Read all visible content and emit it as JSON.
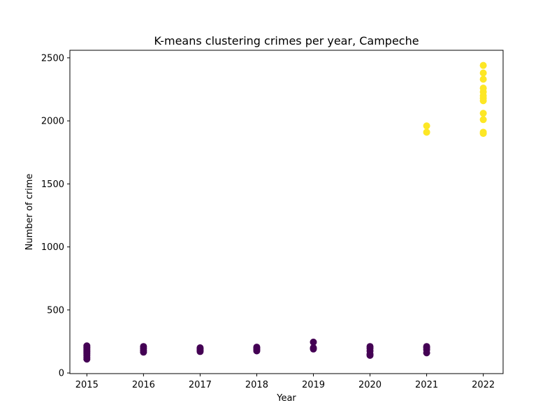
{
  "chart_data": {
    "type": "scatter",
    "title": "K-means clustering crimes per year, Campeche",
    "xlabel": "Year",
    "ylabel": "Number of crime",
    "xlim": [
      2014.7,
      2022.35
    ],
    "ylim": [
      -5,
      2560
    ],
    "xticks": [
      2015,
      2016,
      2017,
      2018,
      2019,
      2020,
      2021,
      2022
    ],
    "xtick_labels": [
      "2015",
      "2016",
      "2017",
      "2018",
      "2019",
      "2020",
      "2021",
      "2022"
    ],
    "yticks": [
      0,
      500,
      1000,
      1500,
      2000,
      2500
    ],
    "ytick_labels": [
      "0",
      "500",
      "1000",
      "1500",
      "2000",
      "2500"
    ],
    "grid": false,
    "legend": "none",
    "series": [
      {
        "cluster": 0,
        "color": "#440154",
        "points": [
          [
            2015,
            110
          ],
          [
            2015,
            125
          ],
          [
            2015,
            140
          ],
          [
            2015,
            155
          ],
          [
            2015,
            165
          ],
          [
            2015,
            175
          ],
          [
            2015,
            185
          ],
          [
            2015,
            195
          ],
          [
            2015,
            205
          ],
          [
            2015,
            215
          ],
          [
            2016,
            165
          ],
          [
            2016,
            180
          ],
          [
            2016,
            195
          ],
          [
            2016,
            210
          ],
          [
            2017,
            170
          ],
          [
            2017,
            180
          ],
          [
            2017,
            190
          ],
          [
            2017,
            200
          ],
          [
            2018,
            175
          ],
          [
            2018,
            185
          ],
          [
            2018,
            195
          ],
          [
            2018,
            205
          ],
          [
            2019,
            190
          ],
          [
            2019,
            200
          ],
          [
            2019,
            245
          ],
          [
            2020,
            140
          ],
          [
            2020,
            150
          ],
          [
            2020,
            175
          ],
          [
            2020,
            195
          ],
          [
            2020,
            210
          ],
          [
            2021,
            160
          ],
          [
            2021,
            185
          ],
          [
            2021,
            200
          ],
          [
            2021,
            210
          ]
        ]
      },
      {
        "cluster": 1,
        "color": "#fde725",
        "points": [
          [
            2021,
            1910
          ],
          [
            2021,
            1960
          ],
          [
            2022,
            1900
          ],
          [
            2022,
            1910
          ],
          [
            2022,
            2010
          ],
          [
            2022,
            2060
          ],
          [
            2022,
            2160
          ],
          [
            2022,
            2180
          ],
          [
            2022,
            2200
          ],
          [
            2022,
            2230
          ],
          [
            2022,
            2260
          ],
          [
            2022,
            2330
          ],
          [
            2022,
            2380
          ],
          [
            2022,
            2440
          ]
        ]
      }
    ]
  }
}
